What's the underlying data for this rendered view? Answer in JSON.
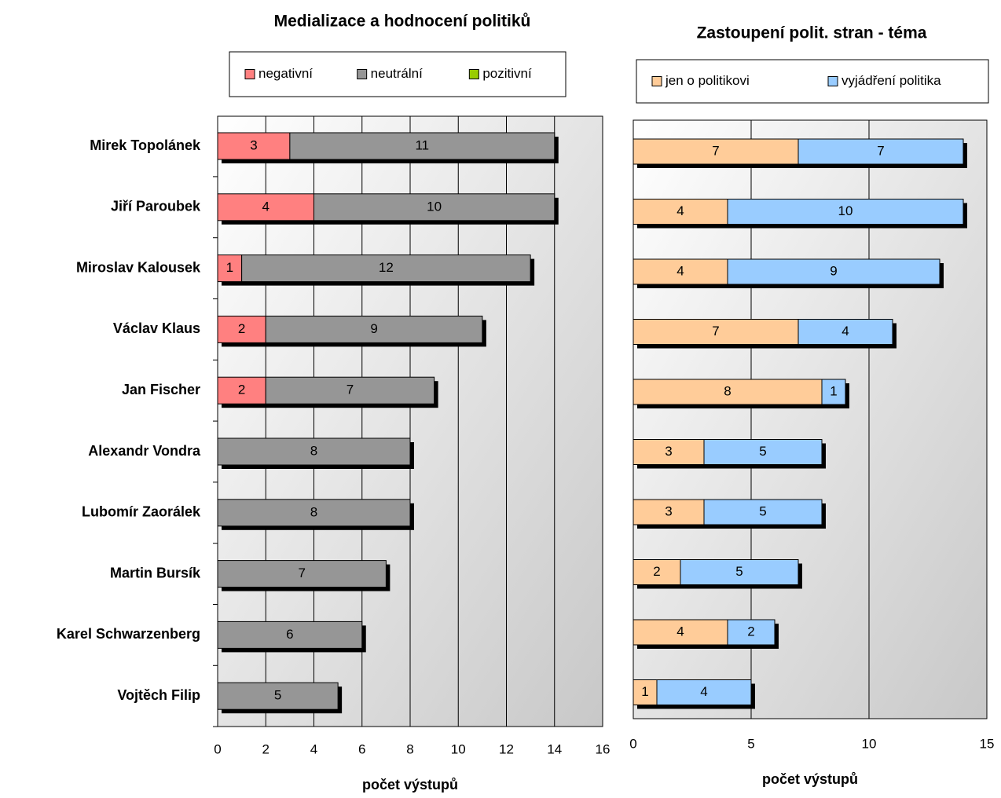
{
  "chart_data": [
    {
      "type": "bar",
      "orientation": "horizontal",
      "stacked": true,
      "title": "Medializace a hodnocení politiků",
      "x_label": "počet výstupů",
      "categories": [
        "Mirek Topolánek",
        "Jiří Paroubek",
        "Miroslav Kalousek",
        "Václav Klaus",
        "Jan Fischer",
        "Alexandr Vondra",
        "Lubomír Zaorálek",
        "Martin Bursík",
        "Karel Schwarzenberg",
        "Vojtěch Filip"
      ],
      "series": [
        {
          "name": "negativní",
          "color": "#ff8080",
          "values": [
            3,
            4,
            1,
            2,
            2,
            0,
            0,
            0,
            0,
            0
          ]
        },
        {
          "name": "neutrální",
          "color": "#969696",
          "values": [
            11,
            10,
            12,
            9,
            7,
            8,
            8,
            7,
            6,
            5
          ]
        },
        {
          "name": "pozitivní",
          "color": "#99cc00",
          "values": [
            0,
            0,
            0,
            0,
            0,
            0,
            0,
            0,
            0,
            0
          ]
        }
      ],
      "xlim": [
        0,
        16
      ],
      "xticks": [
        0,
        2,
        4,
        6,
        8,
        10,
        12,
        14,
        16
      ],
      "grid": true,
      "legend": "top"
    },
    {
      "type": "bar",
      "orientation": "horizontal",
      "stacked": true,
      "title": "Zastoupení polit. stran - téma",
      "x_label": "počet výstupů",
      "series": [
        {
          "name": "jen o politikovi",
          "color": "#ffcc99",
          "values": [
            7,
            4,
            4,
            7,
            8,
            3,
            3,
            2,
            4,
            1
          ]
        },
        {
          "name": "vyjádření politika",
          "color": "#99ccff",
          "values": [
            7,
            10,
            9,
            4,
            1,
            5,
            5,
            5,
            2,
            4
          ]
        }
      ],
      "xlim": [
        0,
        15
      ],
      "xticks": [
        0,
        5,
        10,
        15
      ],
      "grid": true,
      "legend": "top"
    }
  ]
}
